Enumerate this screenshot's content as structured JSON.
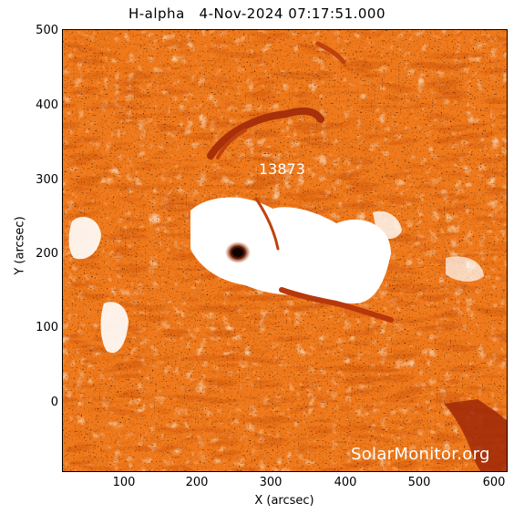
{
  "title": "H-alpha   4-Nov-2024 07:17:51.000",
  "region_label": "13873",
  "watermark": "SolarMonitor.org",
  "axes": {
    "xlabel": "X (arcsec)",
    "ylabel": "Y (arcsec)",
    "xticks": [
      "100",
      "200",
      "300",
      "400",
      "500",
      "600"
    ],
    "yticks": [
      "500",
      "400",
      "300",
      "200",
      "100",
      "0"
    ]
  },
  "colors": {
    "background": "#ffffff",
    "orange": "#f07a1e",
    "light_orange": "#f6b47a",
    "dark_red": "#8a1e06",
    "black_speckle": "#1a0a02"
  }
}
